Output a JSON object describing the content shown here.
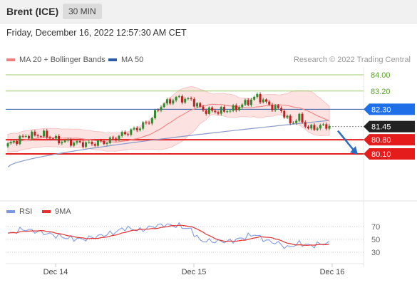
{
  "header": {
    "instrument": "Brent (ICE)",
    "interval": "30 MIN"
  },
  "datetime": "Friday, December 16, 2022 12:57:30 AM CET",
  "legend": {
    "ma20": {
      "label": "MA 20 + Bollinger Bands",
      "color": "#f08080"
    },
    "ma50": {
      "label": "MA 50",
      "color": "#2b5aa6"
    },
    "rsi": {
      "label": "RSI",
      "color": "#7b97e0"
    },
    "ma9": {
      "label": "9MA",
      "color": "#e53030"
    }
  },
  "copyright": "Research © 2022 Trading Central",
  "chart_data": {
    "type": "candlestick",
    "x_tick_labels": [
      "Dec 14",
      "Dec 15",
      "Dec 16"
    ],
    "price_levels": [
      {
        "label": "84.00",
        "value": 84.0,
        "style": "green-line"
      },
      {
        "label": "83.20",
        "value": 83.2,
        "style": "green-line"
      },
      {
        "label": "82.30",
        "value": 82.3,
        "style": "blue-flag",
        "color": "#1e6fe8"
      },
      {
        "label": "81.45",
        "value": 81.45,
        "style": "current-flag",
        "color": "#222222"
      },
      {
        "label": "80.80",
        "value": 80.8,
        "style": "red-flag",
        "color": "#e51c1c"
      },
      {
        "label": "80.10",
        "value": 80.1,
        "style": "red-flag",
        "color": "#e51c1c"
      }
    ],
    "forecast_arrow": {
      "from": 81.45,
      "to": 80.1,
      "direction": "down"
    },
    "rsi_ticks": [
      70,
      50,
      30
    ],
    "rsi_levels_dotted": [
      70,
      50,
      30
    ],
    "colors": {
      "up": "#2e8b2e",
      "down": "#c02020",
      "bands": "#fde2e2"
    }
  }
}
